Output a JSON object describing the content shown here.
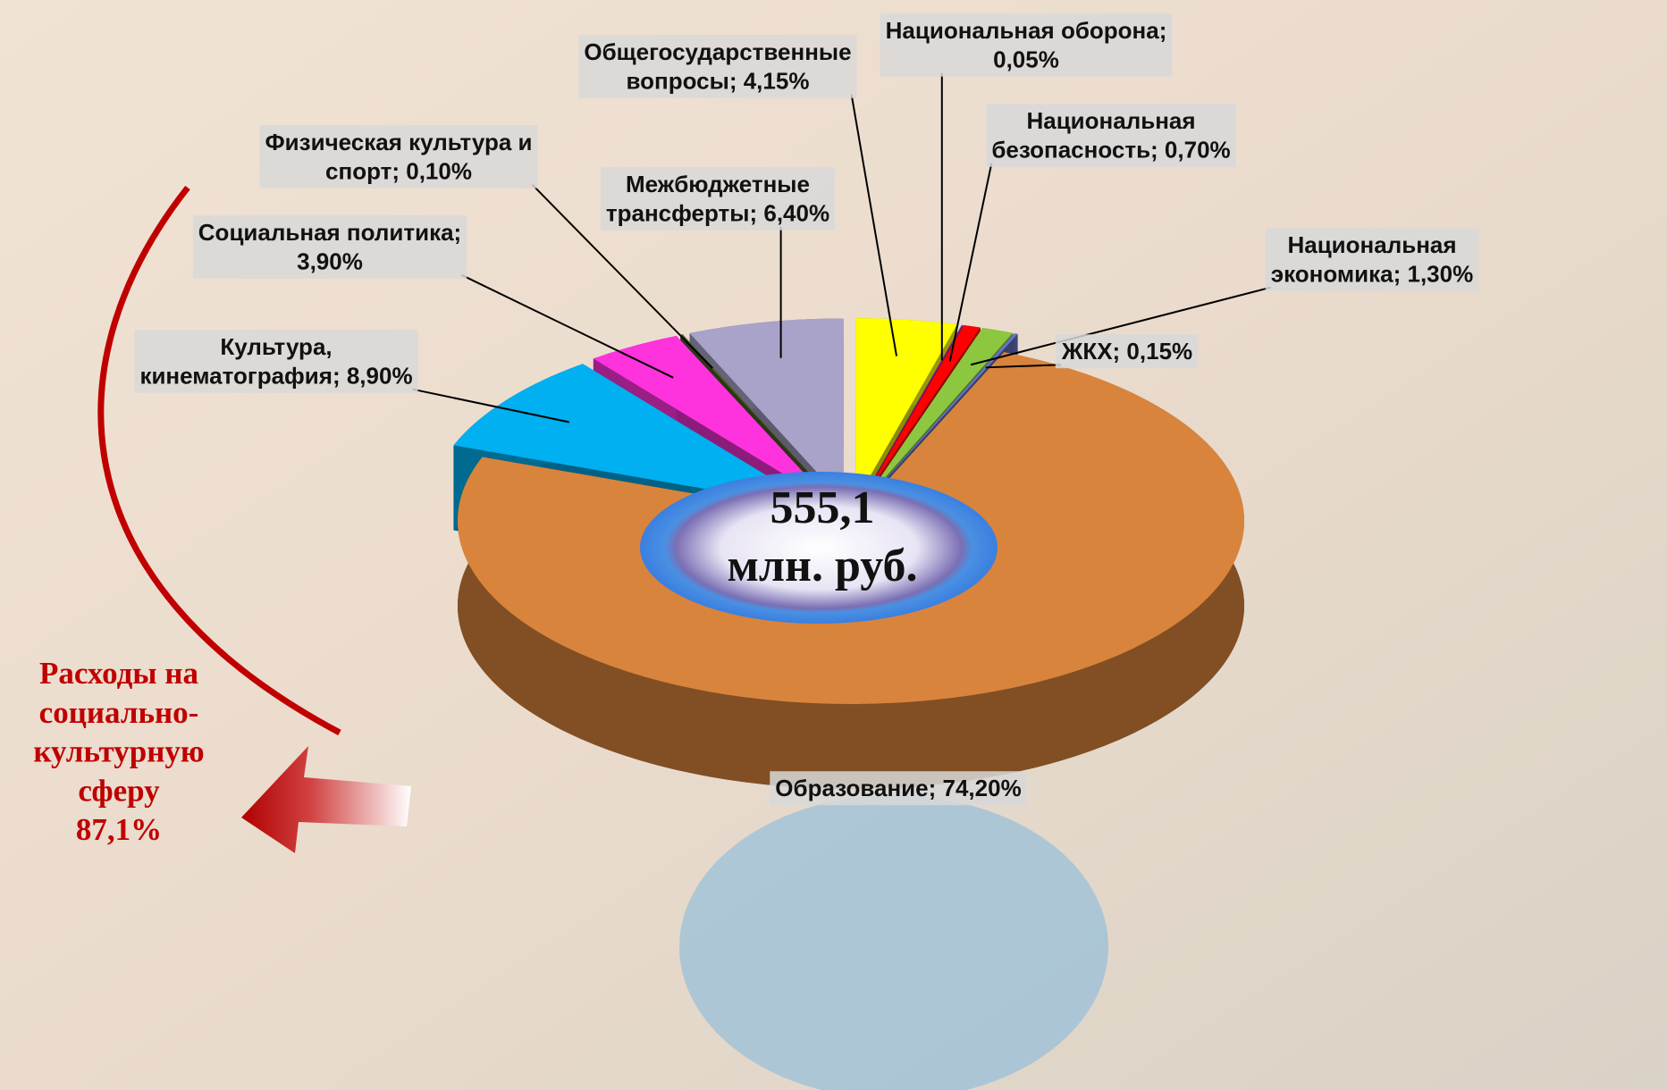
{
  "chart_data": {
    "type": "pie",
    "center_label": "555,1\nмлн. руб.",
    "annotation": "Расходы на\nсоциально-\nкультурную\nсферу\n87,1%",
    "values": [
      4.15,
      0.05,
      0.7,
      1.3,
      0.15,
      74.2,
      8.9,
      3.9,
      0.1,
      6.4
    ],
    "value_labels": [
      "Общегосударственные\nвопросы; 4,15%",
      "Национальная оборона;\n0,05%",
      "Национальная\nбезопасность; 0,70%",
      "Национальная\nэкономика; 1,30%",
      "ЖКХ; 0,15%",
      "Образование; 74,20%",
      "Культура,\nкинематография; 8,90%",
      "Социальная политика;\n3,90%",
      "Физическая культура и\nспорт; 0,10%",
      "Межбюджетные\nтрансферты; 6,40%"
    ],
    "colors": [
      "#ffff00",
      "#7030a0",
      "#ff0000",
      "#8dc63f",
      "#6474c4",
      "#d9843c",
      "#00b0f0",
      "#ff33dd",
      "#4f6228",
      "#a9a3c9"
    ]
  }
}
